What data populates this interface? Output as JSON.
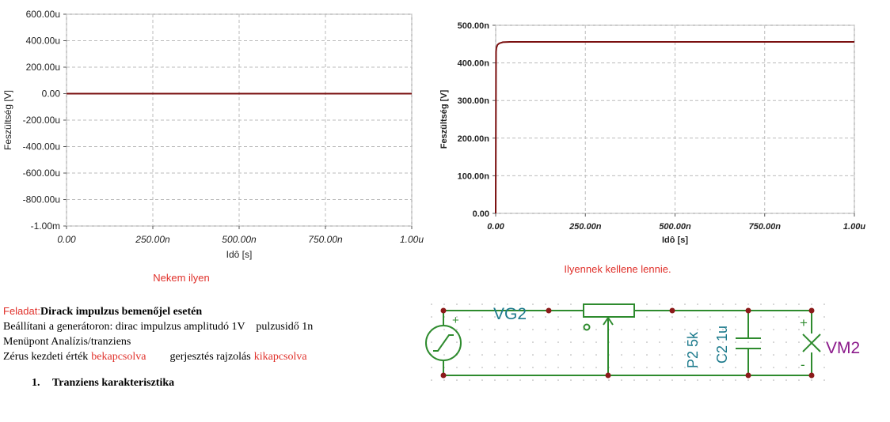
{
  "chart_data": [
    {
      "type": "line",
      "title": "Nekem ilyen",
      "xlabel": "Idô [s]",
      "ylabel": "Feszültség [V]",
      "xlim": [
        0,
        1e-06
      ],
      "xticks": [
        {
          "value": 0,
          "label": "0.00"
        },
        {
          "value": 2.5e-07,
          "label": "250.00n"
        },
        {
          "value": 5e-07,
          "label": "500.00n"
        },
        {
          "value": 7.5e-07,
          "label": "750.00n"
        },
        {
          "value": 1e-06,
          "label": "1.00u"
        }
      ],
      "ylim": [
        -0.001,
        0.0006
      ],
      "yticks": [
        {
          "value": -0.001,
          "label": "-1.00m"
        },
        {
          "value": -0.0008,
          "label": "-800.00u"
        },
        {
          "value": -0.0006,
          "label": "-600.00u"
        },
        {
          "value": -0.0004,
          "label": "-400.00u"
        },
        {
          "value": -0.0002,
          "label": "-200.00u"
        },
        {
          "value": 0,
          "label": "0.00"
        },
        {
          "value": 0.0002,
          "label": "200.00u"
        },
        {
          "value": 0.0004,
          "label": "400.00u"
        },
        {
          "value": 0.0006,
          "label": "600.00u"
        }
      ],
      "grid": true,
      "series": [
        {
          "color": "#7a0f0f",
          "x": [
            0,
            1e-06
          ],
          "values": [
            0,
            0
          ]
        }
      ]
    },
    {
      "type": "line",
      "title": "Ilyennek kellene lennie.",
      "xlabel": "Idô [s]",
      "ylabel": "Feszültség [V]",
      "xlim": [
        0,
        1e-06
      ],
      "xticks": [
        {
          "value": 0,
          "label": "0.00"
        },
        {
          "value": 2.5e-07,
          "label": "250.00n"
        },
        {
          "value": 5e-07,
          "label": "500.00n"
        },
        {
          "value": 7.5e-07,
          "label": "750.00n"
        },
        {
          "value": 1e-06,
          "label": "1.00u"
        }
      ],
      "ylim": [
        0,
        5e-07
      ],
      "yticks": [
        {
          "value": 0,
          "label": "0.00"
        },
        {
          "value": 1e-07,
          "label": "100.00n"
        },
        {
          "value": 2e-07,
          "label": "200.00n"
        },
        {
          "value": 3e-07,
          "label": "300.00n"
        },
        {
          "value": 4e-07,
          "label": "400.00n"
        },
        {
          "value": 5e-07,
          "label": "500.00n"
        }
      ],
      "grid": true,
      "series": [
        {
          "color": "#7a0f0f",
          "x": [
            0,
            1e-09,
            2e-09,
            5e-09,
            1e-08,
            2e-08,
            4e-08,
            1e-06
          ],
          "values": [
            0,
            4.3e-07,
            4.4e-07,
            4.48e-07,
            4.52e-07,
            4.55e-07,
            4.56e-07,
            4.56e-07
          ]
        }
      ]
    }
  ],
  "task": {
    "label": "Feladat:",
    "heading": "Dirack impulzus bemenőjel esetén",
    "lines": [
      "Beállítani a generátoron: dirac impulzus amplitudó 1V    pulzusidő 1n",
      "Menüpont Analízis/tranziens"
    ],
    "zero_label": "Zérus kezdeti érték",
    "zero_state": "bekapcsolva",
    "excitation_label": "gerjesztés rajzolás",
    "excitation_state": "kikapcsolva",
    "section_number": "1.",
    "section_title": "Tranziens karakterisztika"
  },
  "circuit": {
    "source": "VG2",
    "source_plus": "+",
    "potentiometer": "P2 5k",
    "capacitor": "C2 1u",
    "meter": "VM2",
    "meter_plus": "+",
    "meter_minus": "-"
  }
}
